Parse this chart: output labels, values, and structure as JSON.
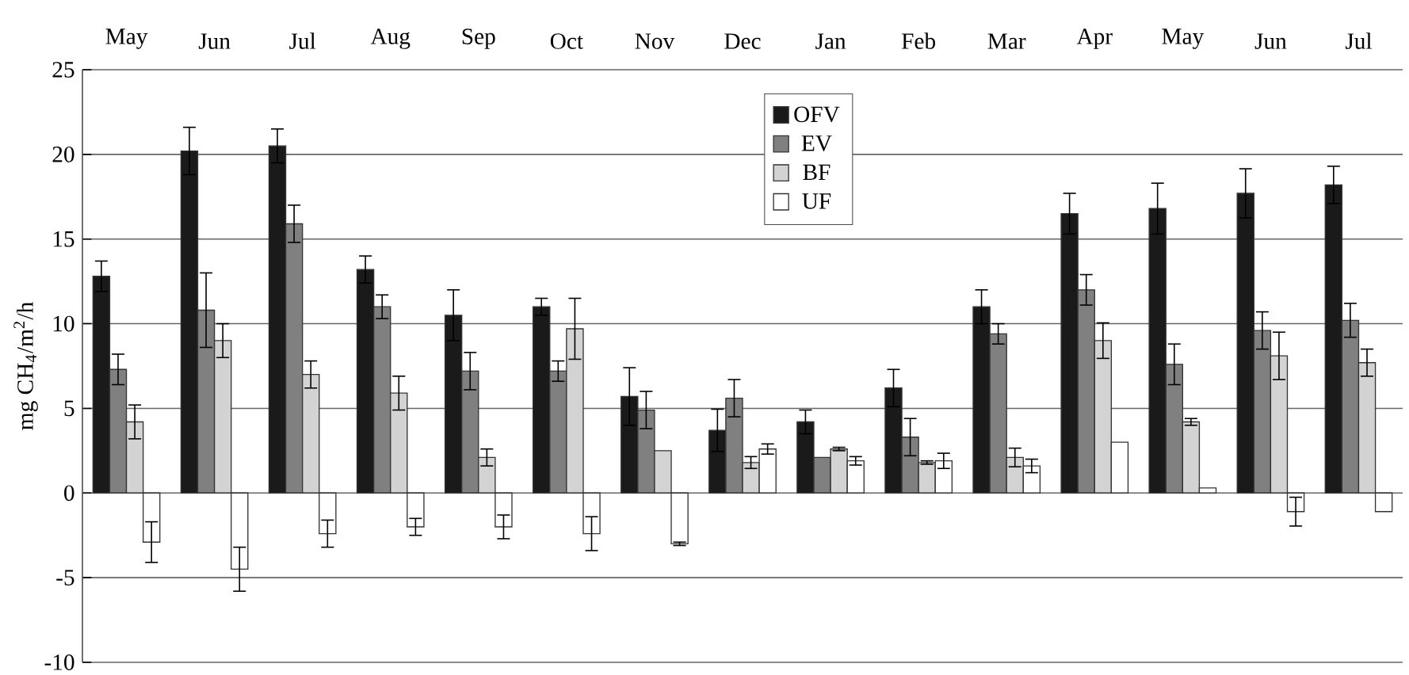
{
  "chart_data": {
    "type": "bar",
    "categories": [
      "May",
      "Jun",
      "Jul",
      "Aug",
      "Sep",
      "Oct",
      "Nov",
      "Dec",
      "Jan",
      "Feb",
      "Mar",
      "Apr",
      "May",
      "Jun",
      "Jul"
    ],
    "ylabel": "mg CH$_{4}$/m$^{2}$/h",
    "series": [
      {
        "name": "OFV",
        "color": "#1a1a1a",
        "values": [
          12.8,
          20.2,
          20.5,
          13.2,
          10.5,
          11.0,
          5.7,
          3.7,
          4.2,
          6.2,
          11.0,
          16.5,
          16.8,
          17.7,
          18.2
        ],
        "errors": [
          0.9,
          1.4,
          1.0,
          0.8,
          1.5,
          0.5,
          1.7,
          1.25,
          0.7,
          1.1,
          1.0,
          1.2,
          1.5,
          1.45,
          1.1
        ]
      },
      {
        "name": "EV",
        "color": "#808080",
        "values": [
          7.3,
          10.8,
          15.9,
          11.0,
          7.2,
          7.2,
          4.9,
          5.6,
          2.1,
          3.3,
          9.4,
          12.0,
          7.6,
          9.6,
          10.2
        ],
        "errors": [
          0.9,
          2.2,
          1.1,
          0.7,
          1.1,
          0.6,
          1.1,
          1.1,
          null,
          1.1,
          0.6,
          0.9,
          1.2,
          1.1,
          1.0
        ]
      },
      {
        "name": "BF",
        "color": "#d3d3d3",
        "values": [
          4.2,
          9.0,
          7.0,
          5.9,
          2.1,
          9.7,
          2.5,
          1.8,
          2.6,
          1.8,
          2.1,
          9.0,
          4.2,
          8.1,
          7.7
        ],
        "errors": [
          1.0,
          1.0,
          0.8,
          1.0,
          0.5,
          1.8,
          null,
          0.35,
          0.1,
          0.1,
          0.55,
          1.05,
          0.2,
          1.4,
          0.8
        ]
      },
      {
        "name": "UF",
        "color": "#ffffff",
        "values": [
          -2.9,
          -4.5,
          -2.4,
          -2.0,
          -2.0,
          -2.4,
          -3.0,
          2.6,
          1.9,
          1.9,
          1.6,
          3.0,
          0.3,
          -1.1,
          -1.1
        ],
        "errors": [
          1.2,
          1.3,
          0.8,
          0.5,
          0.7,
          1.0,
          0.1,
          0.3,
          0.25,
          0.45,
          0.4,
          null,
          null,
          0.85,
          null
        ]
      }
    ],
    "ylim": [
      -10,
      25
    ],
    "yticks": [
      -10,
      -5,
      0,
      5,
      10,
      15,
      20,
      25
    ],
    "grid": "y",
    "legend": "top"
  }
}
